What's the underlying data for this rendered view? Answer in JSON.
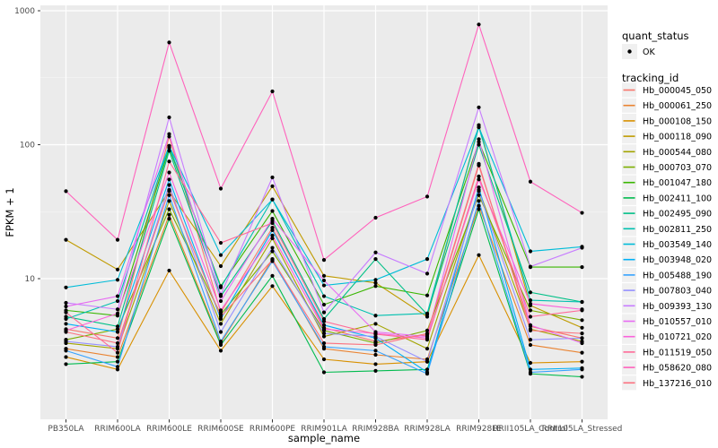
{
  "figure": {
    "background": "#ffffff",
    "panel_background": "#EBEBEB",
    "grid_major_color": "#FFFFFF",
    "grid_minor_color": "#FFFFFF",
    "tick_label_color": "#4d4d4d",
    "point_color": "#000000"
  },
  "legend": {
    "quant_status_title": "quant_status",
    "quant_status_items": [
      {
        "label": "OK",
        "symbol": "point"
      }
    ],
    "tracking_id_title": "tracking_id"
  },
  "chart_data": {
    "type": "line",
    "title": "",
    "xlabel": "sample_name",
    "ylabel": "FPKM + 1",
    "y_scale": "log10",
    "ylim": [
      0.9,
      1050
    ],
    "y_ticks": [
      {
        "value": 10,
        "label": "10"
      },
      {
        "value": 100,
        "label": "100"
      },
      {
        "value": 1000,
        "label": "1000"
      }
    ],
    "y_minor_breaks": [
      3.1623,
      31.623,
      316.23
    ],
    "grid": "major-and-minor",
    "legend_position": "right",
    "categories": [
      "PB350LA",
      "RRIM600LA",
      "RRIM600LE",
      "RRIM600SE",
      "RRIM600PE",
      "RRIM901LA",
      "RRIM928BA",
      "RRIM928LA",
      "RRIM928LE",
      "RRII105LA_Control",
      "RRII105LA_Stressed"
    ],
    "series": [
      {
        "name": "Hb_000045_050",
        "color": "#F8766D",
        "values": [
          4.2,
          3.6,
          115,
          5.6,
          24,
          4.3,
          3.4,
          3.8,
          70,
          4.4,
          3.6
        ]
      },
      {
        "name": "Hb_000061_250",
        "color": "#EA8331",
        "values": [
          3.0,
          2.6,
          30,
          3.3,
          14,
          3.0,
          2.7,
          2.5,
          35,
          3.2,
          2.8
        ]
      },
      {
        "name": "Hb_000108_150",
        "color": "#D89000",
        "values": [
          2.6,
          2.1,
          11.5,
          2.9,
          8.8,
          2.5,
          2.3,
          2.4,
          15,
          2.35,
          2.4
        ]
      },
      {
        "name": "Hb_000118_090",
        "color": "#C09B00",
        "values": [
          19.5,
          11.7,
          45,
          12.4,
          49,
          10.5,
          9.3,
          5.2,
          140,
          6.3,
          4.3
        ]
      },
      {
        "name": "Hb_000544_080",
        "color": "#A3A500",
        "values": [
          3.3,
          3.0,
          38,
          4.6,
          20,
          3.7,
          4.6,
          3.0,
          46,
          4.2,
          3.4
        ]
      },
      {
        "name": "Hb_000703_070",
        "color": "#7CAE00",
        "values": [
          3.5,
          4.2,
          33,
          5.4,
          16,
          4.1,
          3.3,
          4.1,
          42,
          5.8,
          4.9
        ]
      },
      {
        "name": "Hb_001047_180",
        "color": "#39B600",
        "values": [
          5.8,
          5.3,
          95,
          8.8,
          32,
          6.4,
          8.8,
          7.5,
          105,
          12.2,
          12.2
        ]
      },
      {
        "name": "Hb_002411_100",
        "color": "#00BB4E",
        "values": [
          2.3,
          2.4,
          28,
          3.2,
          10.5,
          2.0,
          2.05,
          2.1,
          33,
          1.95,
          1.85
        ]
      },
      {
        "name": "Hb_002495_090",
        "color": "#00C087",
        "values": [
          5.2,
          4.4,
          90,
          7.4,
          27,
          5.0,
          14,
          5.4,
          100,
          7.9,
          6.7
        ]
      },
      {
        "name": "Hb_002811_250",
        "color": "#00C0AF",
        "values": [
          5.0,
          6.8,
          98,
          8.6,
          39,
          7.4,
          5.3,
          5.5,
          135,
          6.9,
          6.7
        ]
      },
      {
        "name": "Hb_003549_140",
        "color": "#00BCD8",
        "values": [
          8.6,
          9.8,
          98,
          15,
          39,
          8.9,
          9.8,
          14,
          135,
          16,
          17.3
        ]
      },
      {
        "name": "Hb_003948_020",
        "color": "#00B0F6",
        "values": [
          4.6,
          4.0,
          55,
          5.0,
          23,
          4.5,
          3.6,
          2.0,
          48,
          2.1,
          2.15
        ]
      },
      {
        "name": "Hb_005488_190",
        "color": "#35A2FF",
        "values": [
          2.9,
          2.2,
          42,
          3.4,
          13.5,
          3.1,
          2.9,
          1.95,
          38,
          2.0,
          2.1
        ]
      },
      {
        "name": "Hb_007803_040",
        "color": "#9590FF",
        "values": [
          3.4,
          3.1,
          50,
          4.0,
          17,
          3.9,
          3.7,
          2.4,
          45,
          3.5,
          3.6
        ]
      },
      {
        "name": "Hb_009393_130",
        "color": "#C77CFF",
        "values": [
          6.6,
          5.9,
          160,
          7.6,
          57,
          5.6,
          15.7,
          10.9,
          190,
          12.3,
          17.0
        ]
      },
      {
        "name": "Hb_010557_010",
        "color": "#E76BF3",
        "values": [
          6.2,
          7.4,
          120,
          6.8,
          28,
          9.7,
          4.0,
          3.7,
          110,
          4.5,
          3.3
        ]
      },
      {
        "name": "Hb_010721_020",
        "color": "#FA62DB",
        "values": [
          4.1,
          5.5,
          62,
          5.8,
          21,
          4.2,
          3.9,
          3.6,
          55,
          6.5,
          5.9
        ]
      },
      {
        "name": "Hb_011519_050",
        "color": "#FF6A98",
        "values": [
          5.6,
          2.8,
          75,
          18.5,
          26,
          4.8,
          3.85,
          3.5,
          58,
          5.2,
          5.8
        ]
      },
      {
        "name": "Hb_058620_080",
        "color": "#FF62BC",
        "values": [
          45,
          19.5,
          580,
          47,
          250,
          13.8,
          28.5,
          41,
          790,
          53,
          31
        ]
      },
      {
        "name": "Hb_137216_010",
        "color": "#FC717F",
        "values": [
          4.0,
          3.3,
          46,
          5.2,
          13.8,
          3.3,
          3.2,
          3.9,
          72,
          4.1,
          3.9
        ]
      }
    ]
  }
}
